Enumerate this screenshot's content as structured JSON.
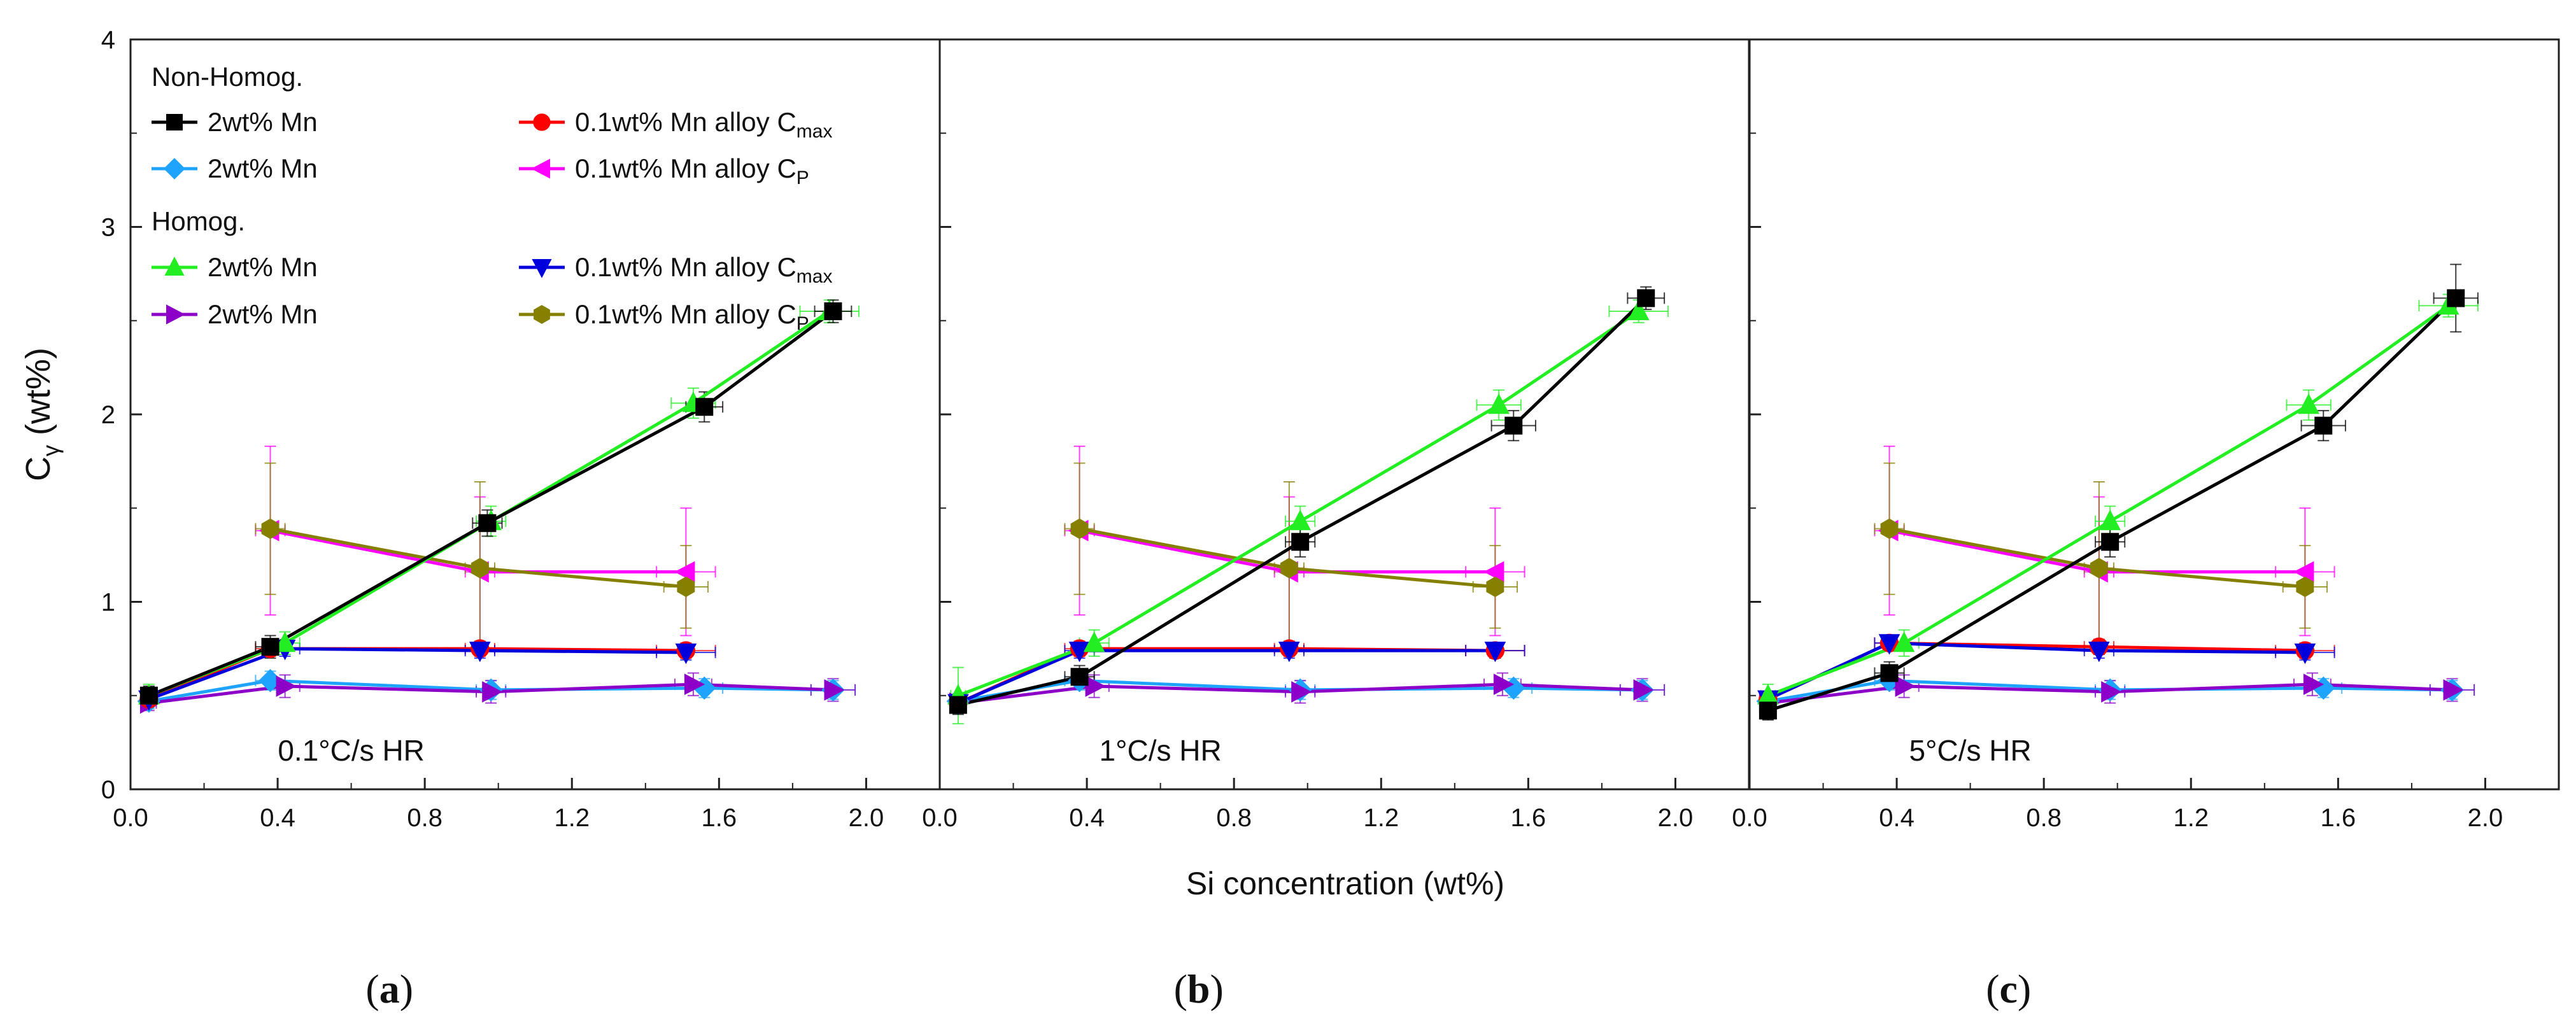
{
  "chart_data": {
    "type": "scatter",
    "y_axis_label": "C",
    "y_axis_label_sub": "γ",
    "y_axis_label_unit": "(wt%)",
    "x_axis_label": "Si concentration (wt%)",
    "xlim": [
      0,
      2.2
    ],
    "ylim": [
      0,
      4
    ],
    "xticks": [
      "0.0",
      "0.4",
      "0.8",
      "1.2",
      "1.6",
      "2.0"
    ],
    "xtick_values": [
      0,
      0.4,
      0.8,
      1.2,
      1.6,
      2.0
    ],
    "yticks": [
      "0",
      "1",
      "2",
      "3",
      "4"
    ],
    "ytick_values": [
      0,
      1,
      2,
      3,
      4
    ],
    "legend": {
      "group1_title": "Non-Homog.",
      "group2_title": "Homog.",
      "items": [
        {
          "key": "nh_2mn_cmax",
          "text": "2wt% Mn",
          "sub": ""
        },
        {
          "key": "nh_01mn_cmax",
          "text": "0.1wt% Mn alloy C",
          "sub": "max"
        },
        {
          "key": "nh_2mn_cp",
          "text": "2wt% Mn",
          "sub": ""
        },
        {
          "key": "nh_01mn_cp",
          "text": "0.1wt% Mn alloy C",
          "sub": "P"
        },
        {
          "key": "h_2mn_cmax",
          "text": "2wt% Mn",
          "sub": ""
        },
        {
          "key": "h_01mn_cmax",
          "text": "0.1wt% Mn alloy C",
          "sub": "max"
        },
        {
          "key": "h_2mn_cp",
          "text": "2wt% Mn",
          "sub": ""
        },
        {
          "key": "h_01mn_cp",
          "text": "0.1wt% Mn alloy C",
          "sub": "P"
        }
      ]
    },
    "series_styles": {
      "nh_2mn_cmax": {
        "color": "#000000",
        "marker": "square"
      },
      "nh_01mn_cmax": {
        "color": "#ff0000",
        "marker": "circle"
      },
      "nh_2mn_cp": {
        "color": "#1ea3ff",
        "marker": "diamond"
      },
      "nh_01mn_cp": {
        "color": "#ff00ff",
        "marker": "triangle-left"
      },
      "h_2mn_cmax": {
        "color": "#22ee22",
        "marker": "triangle-up"
      },
      "h_01mn_cmax": {
        "color": "#0000dd",
        "marker": "triangle-down"
      },
      "h_2mn_cp": {
        "color": "#8c00c8",
        "marker": "triangle-right"
      },
      "h_01mn_cp": {
        "color": "#868000",
        "marker": "hexagon"
      }
    },
    "panels": [
      {
        "id": "a",
        "label": "(a)",
        "label_bold": "a",
        "annotation": "0.1°C/s HR",
        "series": {
          "nh_2mn_cmax": {
            "x": [
              0.05,
              0.38,
              0.97,
              1.56,
              1.91
            ],
            "y": [
              0.5,
              0.76,
              1.42,
              2.04,
              2.55
            ],
            "yerr": [
              0.05,
              0.06,
              0.07,
              0.08,
              0.06
            ],
            "xerr": [
              0.02,
              0.04,
              0.04,
              0.05,
              0.05
            ]
          },
          "nh_01mn_cmax": {
            "x": [
              0.05,
              0.38,
              0.95,
              1.51
            ],
            "y": [
              0.48,
              0.75,
              0.75,
              0.74
            ],
            "yerr": [
              0.04,
              0.04,
              0.04,
              0.04
            ],
            "xerr": [
              0.02,
              0.04,
              0.04,
              0.08
            ]
          },
          "nh_2mn_cp": {
            "x": [
              0.05,
              0.38,
              0.98,
              1.56,
              1.91
            ],
            "y": [
              0.47,
              0.58,
              0.53,
              0.54,
              0.53
            ],
            "yerr": [
              0.04,
              0.05,
              0.05,
              0.05,
              0.05
            ],
            "xerr": [
              0.02,
              0.04,
              0.04,
              0.05,
              0.06
            ]
          },
          "nh_01mn_cp": {
            "x": [
              0.38,
              0.95,
              1.51
            ],
            "y": [
              1.38,
              1.16,
              1.16
            ],
            "yerr": [
              0.45,
              0.4,
              0.34
            ],
            "xerr": [
              0.04,
              0.04,
              0.08
            ]
          },
          "h_2mn_cmax": {
            "x": [
              0.05,
              0.42,
              0.98,
              1.53,
              1.9
            ],
            "y": [
              0.5,
              0.78,
              1.43,
              2.06,
              2.55
            ],
            "yerr": [
              0.06,
              0.06,
              0.08,
              0.08,
              0.06
            ],
            "xerr": [
              0.02,
              0.04,
              0.04,
              0.06,
              0.08
            ]
          },
          "h_01mn_cmax": {
            "x": [
              0.05,
              0.42,
              0.95,
              1.51
            ],
            "y": [
              0.48,
              0.75,
              0.74,
              0.73
            ],
            "yerr": [
              0.04,
              0.04,
              0.04,
              0.04
            ],
            "xerr": [
              0.02,
              0.04,
              0.04,
              0.08
            ]
          },
          "h_2mn_cp": {
            "x": [
              0.05,
              0.42,
              0.98,
              1.53,
              1.91
            ],
            "y": [
              0.46,
              0.55,
              0.52,
              0.56,
              0.53
            ],
            "yerr": [
              0.04,
              0.06,
              0.06,
              0.06,
              0.06
            ],
            "xerr": [
              0.02,
              0.04,
              0.04,
              0.05,
              0.06
            ]
          },
          "h_01mn_cp": {
            "x": [
              0.38,
              0.95,
              1.51
            ],
            "y": [
              1.39,
              1.18,
              1.08
            ],
            "yerr": [
              0.35,
              0.46,
              0.22
            ],
            "xerr": [
              0.04,
              0.04,
              0.06
            ]
          }
        }
      },
      {
        "id": "b",
        "label": "(b)",
        "label_bold": "b",
        "annotation": "1°C/s HR",
        "series": {
          "nh_2mn_cmax": {
            "x": [
              0.05,
              0.38,
              0.98,
              1.56,
              1.92
            ],
            "y": [
              0.45,
              0.6,
              1.32,
              1.94,
              2.62
            ],
            "yerr": [
              0.05,
              0.06,
              0.08,
              0.08,
              0.06
            ],
            "xerr": [
              0.02,
              0.04,
              0.04,
              0.06,
              0.05
            ]
          },
          "nh_01mn_cmax": {
            "x": [
              0.05,
              0.38,
              0.95,
              1.51
            ],
            "y": [
              0.46,
              0.75,
              0.75,
              0.74
            ],
            "yerr": [
              0.04,
              0.04,
              0.04,
              0.04
            ],
            "xerr": [
              0.02,
              0.04,
              0.04,
              0.08
            ]
          },
          "nh_2mn_cp": {
            "x": [
              0.05,
              0.38,
              0.98,
              1.56,
              1.91
            ],
            "y": [
              0.47,
              0.58,
              0.53,
              0.54,
              0.53
            ],
            "yerr": [
              0.04,
              0.05,
              0.05,
              0.05,
              0.05
            ],
            "xerr": [
              0.02,
              0.04,
              0.04,
              0.05,
              0.06
            ]
          },
          "nh_01mn_cp": {
            "x": [
              0.38,
              0.95,
              1.51
            ],
            "y": [
              1.38,
              1.16,
              1.16
            ],
            "yerr": [
              0.45,
              0.4,
              0.34
            ],
            "xerr": [
              0.04,
              0.04,
              0.08
            ]
          },
          "h_2mn_cmax": {
            "x": [
              0.05,
              0.42,
              0.98,
              1.52,
              1.9
            ],
            "y": [
              0.5,
              0.78,
              1.43,
              2.05,
              2.55
            ],
            "yerr": [
              0.15,
              0.07,
              0.08,
              0.08,
              0.06
            ],
            "xerr": [
              0.02,
              0.04,
              0.04,
              0.06,
              0.08
            ]
          },
          "h_01mn_cmax": {
            "x": [
              0.05,
              0.38,
              0.95,
              1.51
            ],
            "y": [
              0.46,
              0.74,
              0.74,
              0.74
            ],
            "yerr": [
              0.04,
              0.04,
              0.04,
              0.04
            ],
            "xerr": [
              0.02,
              0.04,
              0.04,
              0.08
            ]
          },
          "h_2mn_cp": {
            "x": [
              0.05,
              0.42,
              0.98,
              1.53,
              1.91
            ],
            "y": [
              0.46,
              0.55,
              0.52,
              0.56,
              0.53
            ],
            "yerr": [
              0.04,
              0.06,
              0.06,
              0.06,
              0.06
            ],
            "xerr": [
              0.02,
              0.04,
              0.04,
              0.05,
              0.06
            ]
          },
          "h_01mn_cp": {
            "x": [
              0.38,
              0.95,
              1.51
            ],
            "y": [
              1.39,
              1.18,
              1.08
            ],
            "yerr": [
              0.35,
              0.46,
              0.22
            ],
            "xerr": [
              0.04,
              0.04,
              0.06
            ]
          }
        }
      },
      {
        "id": "c",
        "label": "(c)",
        "label_bold": "c",
        "annotation": "5°C/s HR",
        "series": {
          "nh_2mn_cmax": {
            "x": [
              0.05,
              0.38,
              0.98,
              1.56,
              1.92
            ],
            "y": [
              0.42,
              0.62,
              1.32,
              1.94,
              2.62
            ],
            "yerr": [
              0.05,
              0.06,
              0.08,
              0.08,
              0.18
            ],
            "xerr": [
              0.02,
              0.04,
              0.04,
              0.06,
              0.06
            ]
          },
          "nh_01mn_cmax": {
            "x": [
              0.05,
              0.38,
              0.95,
              1.51
            ],
            "y": [
              0.48,
              0.78,
              0.76,
              0.74
            ],
            "yerr": [
              0.04,
              0.04,
              0.04,
              0.04
            ],
            "xerr": [
              0.02,
              0.04,
              0.04,
              0.08
            ]
          },
          "nh_2mn_cp": {
            "x": [
              0.05,
              0.38,
              0.98,
              1.56,
              1.91
            ],
            "y": [
              0.47,
              0.58,
              0.53,
              0.54,
              0.53
            ],
            "yerr": [
              0.04,
              0.05,
              0.05,
              0.05,
              0.05
            ],
            "xerr": [
              0.02,
              0.04,
              0.04,
              0.05,
              0.06
            ]
          },
          "nh_01mn_cp": {
            "x": [
              0.38,
              0.95,
              1.51
            ],
            "y": [
              1.38,
              1.16,
              1.16
            ],
            "yerr": [
              0.45,
              0.4,
              0.34
            ],
            "xerr": [
              0.04,
              0.04,
              0.08
            ]
          },
          "h_2mn_cmax": {
            "x": [
              0.05,
              0.42,
              0.98,
              1.52,
              1.9
            ],
            "y": [
              0.5,
              0.78,
              1.43,
              2.05,
              2.58
            ],
            "yerr": [
              0.06,
              0.07,
              0.08,
              0.08,
              0.06
            ],
            "xerr": [
              0.02,
              0.04,
              0.04,
              0.06,
              0.08
            ]
          },
          "h_01mn_cmax": {
            "x": [
              0.05,
              0.38,
              0.95,
              1.51
            ],
            "y": [
              0.48,
              0.78,
              0.74,
              0.73
            ],
            "yerr": [
              0.04,
              0.04,
              0.04,
              0.04
            ],
            "xerr": [
              0.02,
              0.04,
              0.04,
              0.08
            ]
          },
          "h_2mn_cp": {
            "x": [
              0.05,
              0.42,
              0.98,
              1.53,
              1.91
            ],
            "y": [
              0.46,
              0.55,
              0.52,
              0.56,
              0.53
            ],
            "yerr": [
              0.04,
              0.06,
              0.06,
              0.06,
              0.06
            ],
            "xerr": [
              0.02,
              0.04,
              0.04,
              0.05,
              0.06
            ]
          },
          "h_01mn_cp": {
            "x": [
              0.38,
              0.95,
              1.51
            ],
            "y": [
              1.39,
              1.18,
              1.08
            ],
            "yerr": [
              0.35,
              0.46,
              0.22
            ],
            "xerr": [
              0.04,
              0.04,
              0.06
            ]
          }
        }
      }
    ]
  }
}
